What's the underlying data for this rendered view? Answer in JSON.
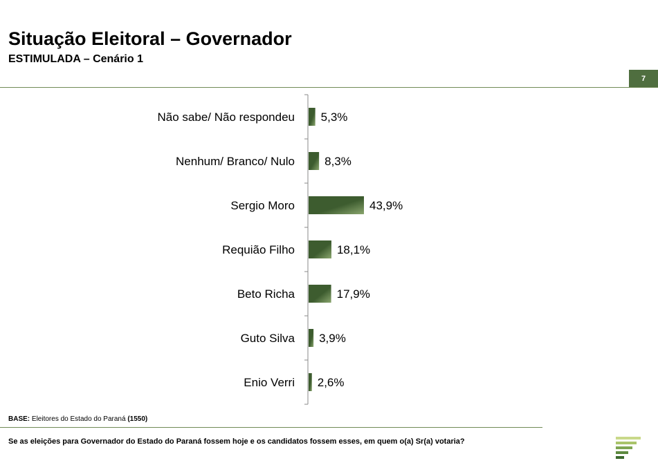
{
  "header": {
    "title": "Situação Eleitoral – Governador",
    "subtitle": "ESTIMULADA – Cenário 1",
    "page_number": "7"
  },
  "footer": {
    "base_label": "BASE:",
    "base_text": "Eleitores do Estado do Paraná",
    "base_count": "(1550)",
    "question": "Se as eleições para Governador do Estado do Paraná fossem hoje e os candidatos fossem esses, em quem o(a) Sr(a) votaria?"
  },
  "colors": {
    "bar_dark": "#3d5c2f",
    "bar_light": "#8aa66e",
    "accent": "#4f6e3f"
  },
  "chart_data": {
    "type": "bar",
    "orientation": "horizontal",
    "categories": [
      "Não sabe/ Não respondeu",
      "Nenhum/ Branco/ Nulo",
      "Sergio Moro",
      "Requião Filho",
      "Beto Richa",
      "Guto Silva",
      "Enio Verri"
    ],
    "values": [
      5.3,
      8.3,
      43.9,
      18.1,
      17.9,
      3.9,
      2.6
    ],
    "value_labels": [
      "5,3%",
      "8,3%",
      "43,9%",
      "18,1%",
      "17,9%",
      "3,9%",
      "2,6%"
    ],
    "xlim": [
      0,
      100
    ],
    "grid": false,
    "legend": "none"
  }
}
